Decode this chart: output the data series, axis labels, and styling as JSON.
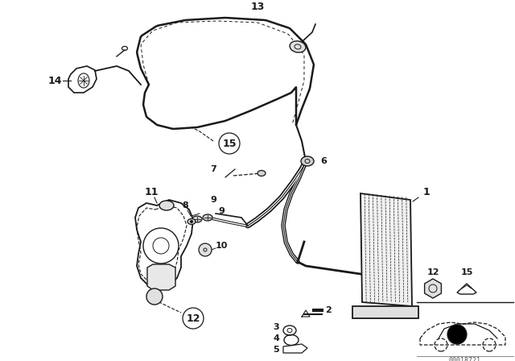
{
  "bg_color": "#ffffff",
  "line_color": "#1a1a1a",
  "fig_width": 6.4,
  "fig_height": 4.48,
  "dpi": 100,
  "watermark": "00018721",
  "label_fontsize": 8,
  "label_bold": true
}
